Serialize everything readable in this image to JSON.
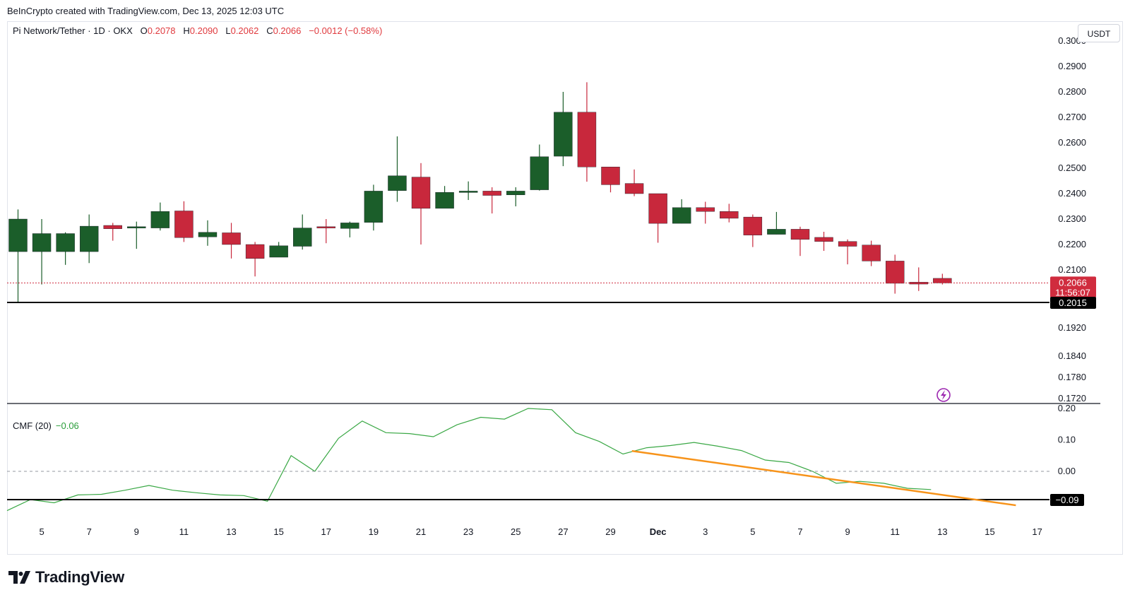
{
  "attribution": "BeInCrypto created with TradingView.com, Dec 13, 2025 12:03 UTC",
  "legend": {
    "symbol": "Pi Network/Tether · 1D · OKX",
    "o_label": "O",
    "o": "0.2078",
    "h_label": "H",
    "h": "0.2090",
    "l_label": "L",
    "l": "0.2062",
    "c_label": "C",
    "c": "0.2066",
    "change": "−0.0012 (−0.58%)"
  },
  "currency": "USDT",
  "price_badge": {
    "price": "0.2066",
    "countdown": "11:56:07"
  },
  "support_badge": "0.2015",
  "cmf_label": "CMF (20)",
  "cmf_value": "−0.06",
  "cmf_support_badge": "−0.09",
  "brand": "TradingView",
  "colors": {
    "up": "#1b5e2a",
    "down": "#c8283c",
    "cmf_line": "#3aa845",
    "trendline": "#f7931a",
    "badge_red": "#d02c3e"
  },
  "chart_data": [
    {
      "type": "candlestick",
      "title": "Pi Network/Tether · 1D · OKX",
      "y_ticks": [
        "0.3000",
        "0.2900",
        "0.2800",
        "0.2700",
        "0.2600",
        "0.2500",
        "0.2400",
        "0.2300",
        "0.2200",
        "0.2100",
        "0.1920",
        "0.1840",
        "0.1780",
        "0.1720"
      ],
      "x_ticks": [
        "5",
        "7",
        "9",
        "11",
        "13",
        "15",
        "17",
        "19",
        "21",
        "23",
        "25",
        "27",
        "29",
        "Dec",
        "3",
        "5",
        "7",
        "9",
        "11",
        "13",
        "15",
        "17"
      ],
      "support_level": 0.2015,
      "last_price": 0.2066,
      "candles": [
        {
          "o": 0.2172,
          "h": 0.2338,
          "l": 0.2015,
          "c": 0.23
        },
        {
          "o": 0.2172,
          "h": 0.23,
          "l": 0.2062,
          "c": 0.2243
        },
        {
          "o": 0.2172,
          "h": 0.2248,
          "l": 0.212,
          "c": 0.2243
        },
        {
          "o": 0.2172,
          "h": 0.2318,
          "l": 0.2127,
          "c": 0.2272
        },
        {
          "o": 0.2275,
          "h": 0.2285,
          "l": 0.2215,
          "c": 0.2262
        },
        {
          "o": 0.2266,
          "h": 0.229,
          "l": 0.2183,
          "c": 0.227
        },
        {
          "o": 0.2265,
          "h": 0.2365,
          "l": 0.2255,
          "c": 0.233
        },
        {
          "o": 0.2332,
          "h": 0.237,
          "l": 0.221,
          "c": 0.2227
        },
        {
          "o": 0.223,
          "h": 0.2295,
          "l": 0.2195,
          "c": 0.2248
        },
        {
          "o": 0.2246,
          "h": 0.2285,
          "l": 0.2145,
          "c": 0.22
        },
        {
          "o": 0.22,
          "h": 0.221,
          "l": 0.2083,
          "c": 0.2145
        },
        {
          "o": 0.215,
          "h": 0.221,
          "l": 0.215,
          "c": 0.2195
        },
        {
          "o": 0.2193,
          "h": 0.2318,
          "l": 0.218,
          "c": 0.2265
        },
        {
          "o": 0.227,
          "h": 0.23,
          "l": 0.2205,
          "c": 0.2268
        },
        {
          "o": 0.2263,
          "h": 0.229,
          "l": 0.2228,
          "c": 0.2285
        },
        {
          "o": 0.2287,
          "h": 0.2435,
          "l": 0.2255,
          "c": 0.241
        },
        {
          "o": 0.2412,
          "h": 0.2625,
          "l": 0.2368,
          "c": 0.247
        },
        {
          "o": 0.2465,
          "h": 0.252,
          "l": 0.22,
          "c": 0.2342
        },
        {
          "o": 0.2342,
          "h": 0.243,
          "l": 0.2343,
          "c": 0.2405
        },
        {
          "o": 0.2405,
          "h": 0.2448,
          "l": 0.2375,
          "c": 0.241
        },
        {
          "o": 0.241,
          "h": 0.2425,
          "l": 0.2322,
          "c": 0.2393
        },
        {
          "o": 0.2395,
          "h": 0.2425,
          "l": 0.235,
          "c": 0.241
        },
        {
          "o": 0.2415,
          "h": 0.2593,
          "l": 0.2412,
          "c": 0.2545
        },
        {
          "o": 0.2547,
          "h": 0.28,
          "l": 0.2508,
          "c": 0.272
        },
        {
          "o": 0.272,
          "h": 0.2838,
          "l": 0.2447,
          "c": 0.2505
        },
        {
          "o": 0.2505,
          "h": 0.2505,
          "l": 0.2405,
          "c": 0.2435
        },
        {
          "o": 0.244,
          "h": 0.2495,
          "l": 0.239,
          "c": 0.24
        },
        {
          "o": 0.24,
          "h": 0.24,
          "l": 0.2207,
          "c": 0.2283
        },
        {
          "o": 0.2283,
          "h": 0.2378,
          "l": 0.2283,
          "c": 0.2345
        },
        {
          "o": 0.2345,
          "h": 0.2368,
          "l": 0.2282,
          "c": 0.233
        },
        {
          "o": 0.233,
          "h": 0.236,
          "l": 0.2287,
          "c": 0.2303
        },
        {
          "o": 0.2308,
          "h": 0.2318,
          "l": 0.219,
          "c": 0.2237
        },
        {
          "o": 0.224,
          "h": 0.2328,
          "l": 0.224,
          "c": 0.226
        },
        {
          "o": 0.226,
          "h": 0.227,
          "l": 0.2155,
          "c": 0.222
        },
        {
          "o": 0.2228,
          "h": 0.225,
          "l": 0.2175,
          "c": 0.2212
        },
        {
          "o": 0.2212,
          "h": 0.222,
          "l": 0.2122,
          "c": 0.2193
        },
        {
          "o": 0.2198,
          "h": 0.2215,
          "l": 0.2115,
          "c": 0.2135
        },
        {
          "o": 0.2135,
          "h": 0.216,
          "l": 0.2038,
          "c": 0.2065
        },
        {
          "o": 0.2068,
          "h": 0.211,
          "l": 0.2045,
          "c": 0.2063
        },
        {
          "o": 0.2078,
          "h": 0.209,
          "l": 0.2062,
          "c": 0.2066
        }
      ]
    },
    {
      "type": "line",
      "title": "CMF (20)",
      "y_ticks": [
        "0.20",
        "0.10",
        "0.00"
      ],
      "zero_line": 0.0,
      "support_level": -0.09,
      "series": [
        {
          "name": "CMF (20)",
          "values": [
            -0.125,
            -0.09,
            -0.1,
            -0.075,
            -0.073,
            -0.06,
            -0.045,
            -0.06,
            -0.068,
            -0.075,
            -0.077,
            -0.095,
            0.05,
            0.0,
            0.105,
            0.16,
            0.123,
            0.12,
            0.11,
            0.148,
            0.172,
            0.166,
            0.2,
            0.196,
            0.123,
            0.095,
            0.055,
            0.075,
            0.082,
            0.092,
            0.08,
            0.066,
            0.036,
            0.028,
            0.0,
            -0.038,
            -0.032,
            -0.038,
            -0.054,
            -0.058
          ]
        }
      ],
      "trendline": {
        "x": [
          25.9,
          42.1
        ],
        "y": [
          0.065,
          -0.108
        ]
      }
    }
  ]
}
